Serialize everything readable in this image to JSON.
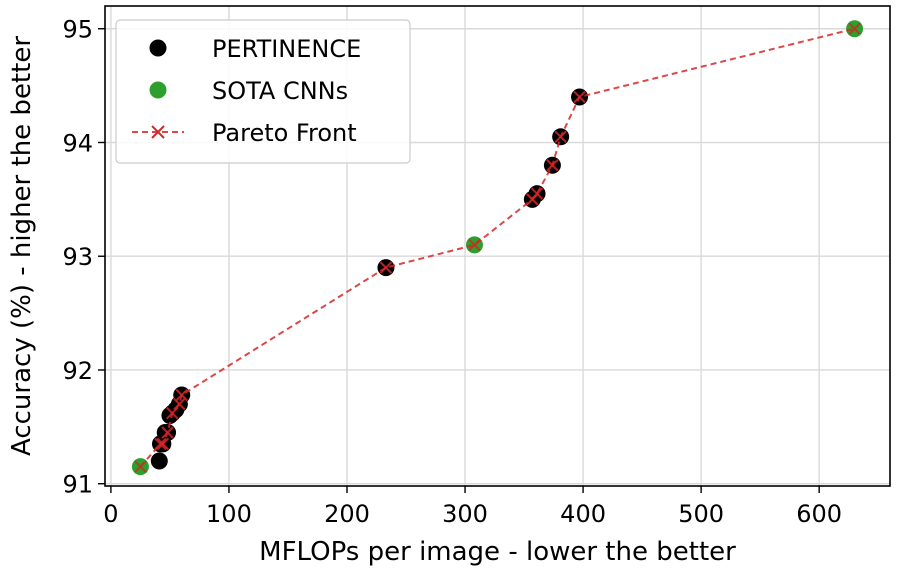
{
  "chart_data": {
    "type": "scatter",
    "xlabel": "MFLOPs per image - lower the better",
    "ylabel": "Accuracy (%) - higher the better",
    "xlim": [
      -5,
      660
    ],
    "ylim": [
      90.98,
      95.2
    ],
    "xticks": [
      0,
      100,
      200,
      300,
      400,
      500,
      600
    ],
    "yticks": [
      91,
      92,
      93,
      94,
      95
    ],
    "grid": true,
    "legend": {
      "position": "top-left",
      "entries": [
        {
          "label": "PERTINENCE",
          "color": "#000000",
          "marker": "circle"
        },
        {
          "label": "SOTA CNNs",
          "color": "#2ca02c",
          "marker": "circle"
        },
        {
          "label": "Pareto Front",
          "color": "#d62728",
          "marker": "x-dashed-line"
        }
      ]
    },
    "series": [
      {
        "name": "PERTINENCE",
        "color": "#000000",
        "points": [
          [
            41,
            91.2
          ],
          [
            42,
            91.35
          ],
          [
            44,
            91.35
          ],
          [
            46,
            91.45
          ],
          [
            48,
            91.45
          ],
          [
            50,
            91.6
          ],
          [
            52,
            91.62
          ],
          [
            55,
            91.65
          ],
          [
            58,
            91.7
          ],
          [
            60,
            91.78
          ],
          [
            233,
            92.9
          ],
          [
            357,
            93.5
          ],
          [
            361,
            93.55
          ],
          [
            374,
            93.8
          ],
          [
            381,
            94.05
          ],
          [
            397,
            94.4
          ]
        ]
      },
      {
        "name": "SOTA CNNs",
        "color": "#2ca02c",
        "points": [
          [
            25,
            91.15
          ],
          [
            308,
            93.1
          ],
          [
            630,
            95.0
          ]
        ]
      },
      {
        "name": "Pareto Front",
        "color": "#d62728",
        "points": [
          [
            25,
            91.15
          ],
          [
            42,
            91.35
          ],
          [
            44,
            91.35
          ],
          [
            48,
            91.45
          ],
          [
            52,
            91.62
          ],
          [
            58,
            91.7
          ],
          [
            60,
            91.78
          ],
          [
            233,
            92.9
          ],
          [
            308,
            93.1
          ],
          [
            357,
            93.5
          ],
          [
            361,
            93.55
          ],
          [
            374,
            93.8
          ],
          [
            381,
            94.05
          ],
          [
            397,
            94.4
          ],
          [
            630,
            95.0
          ]
        ]
      }
    ]
  }
}
